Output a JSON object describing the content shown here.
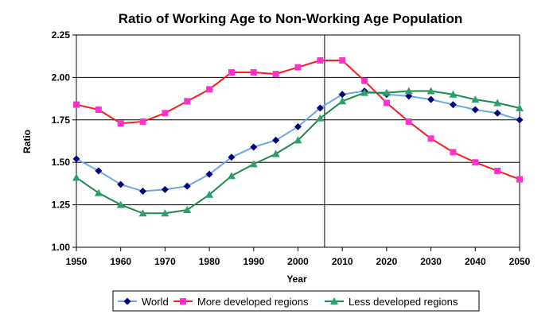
{
  "chart_data": {
    "type": "line",
    "title": "Ratio of Working Age to Non-Working Age Population",
    "xlabel": "Year",
    "ylabel": "Ratio",
    "xlim": [
      1950,
      2050
    ],
    "ylim": [
      1.0,
      2.25
    ],
    "xticks": [
      "1950",
      "1960",
      "1970",
      "1980",
      "1990",
      "2000",
      "2010",
      "2020",
      "2030",
      "2040",
      "2050"
    ],
    "yticks": [
      "1.00",
      "1.25",
      "1.50",
      "1.75",
      "2.00",
      "2.25"
    ],
    "grid": "horizontal",
    "reference_line_x": 2006,
    "legend_position": "bottom",
    "x": [
      1950,
      1955,
      1960,
      1965,
      1970,
      1975,
      1980,
      1985,
      1990,
      1995,
      2000,
      2005,
      2010,
      2015,
      2020,
      2025,
      2030,
      2035,
      2040,
      2045,
      2050
    ],
    "series": [
      {
        "name": "World",
        "color": "#6aa8e8",
        "marker_color": "#00007a",
        "marker": "diamond",
        "values": [
          1.52,
          1.45,
          1.37,
          1.33,
          1.34,
          1.36,
          1.43,
          1.53,
          1.59,
          1.63,
          1.71,
          1.82,
          1.9,
          1.92,
          1.9,
          1.89,
          1.87,
          1.84,
          1.81,
          1.79,
          1.75
        ]
      },
      {
        "name": "More developed regions",
        "color": "#ff1a1a",
        "marker_color": "#ff33cc",
        "marker": "square",
        "values": [
          1.84,
          1.81,
          1.73,
          1.74,
          1.79,
          1.86,
          1.93,
          2.03,
          2.03,
          2.02,
          2.06,
          2.1,
          2.1,
          1.98,
          1.85,
          1.74,
          1.64,
          1.56,
          1.5,
          1.45,
          1.4
        ]
      },
      {
        "name": "Less developed regions",
        "color": "#1a8a4a",
        "marker_color": "#2e9e6a",
        "marker": "triangle",
        "values": [
          1.41,
          1.32,
          1.25,
          1.2,
          1.2,
          1.22,
          1.31,
          1.42,
          1.49,
          1.55,
          1.63,
          1.76,
          1.86,
          1.91,
          1.91,
          1.92,
          1.92,
          1.9,
          1.87,
          1.85,
          1.82
        ]
      }
    ]
  }
}
